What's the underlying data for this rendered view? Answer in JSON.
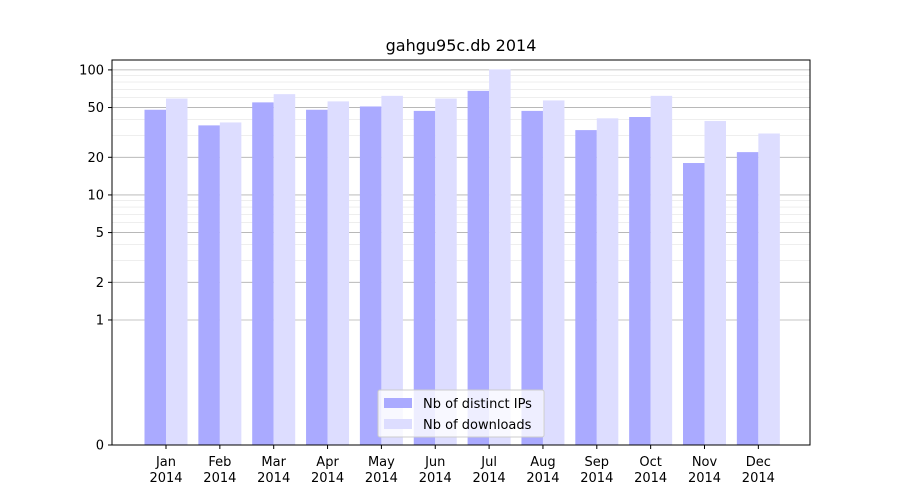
{
  "chart_data": {
    "type": "bar",
    "title": "gahgu95c.db 2014",
    "xlabel": "",
    "ylabel": "",
    "yscale": "symlog",
    "ylim": [
      0,
      120
    ],
    "grid": true,
    "legend_position": "bottom-center",
    "categories": [
      "Jan\n2014",
      "Feb\n2014",
      "Mar\n2014",
      "Apr\n2014",
      "May\n2014",
      "Jun\n2014",
      "Jul\n2014",
      "Aug\n2014",
      "Sep\n2014",
      "Oct\n2014",
      "Nov\n2014",
      "Dec\n2014"
    ],
    "yticks": [
      0,
      1,
      2,
      5,
      10,
      20,
      50,
      100
    ],
    "series": [
      {
        "name": "Nb of distinct IPs",
        "color": "#aaaaff",
        "values": [
          48,
          36,
          55,
          48,
          51,
          47,
          68,
          47,
          33,
          42,
          18,
          22
        ]
      },
      {
        "name": "Nb of downloads",
        "color": "#ddddff",
        "values": [
          59,
          38,
          64,
          56,
          62,
          59,
          101,
          57,
          41,
          62,
          39,
          31
        ]
      }
    ]
  }
}
